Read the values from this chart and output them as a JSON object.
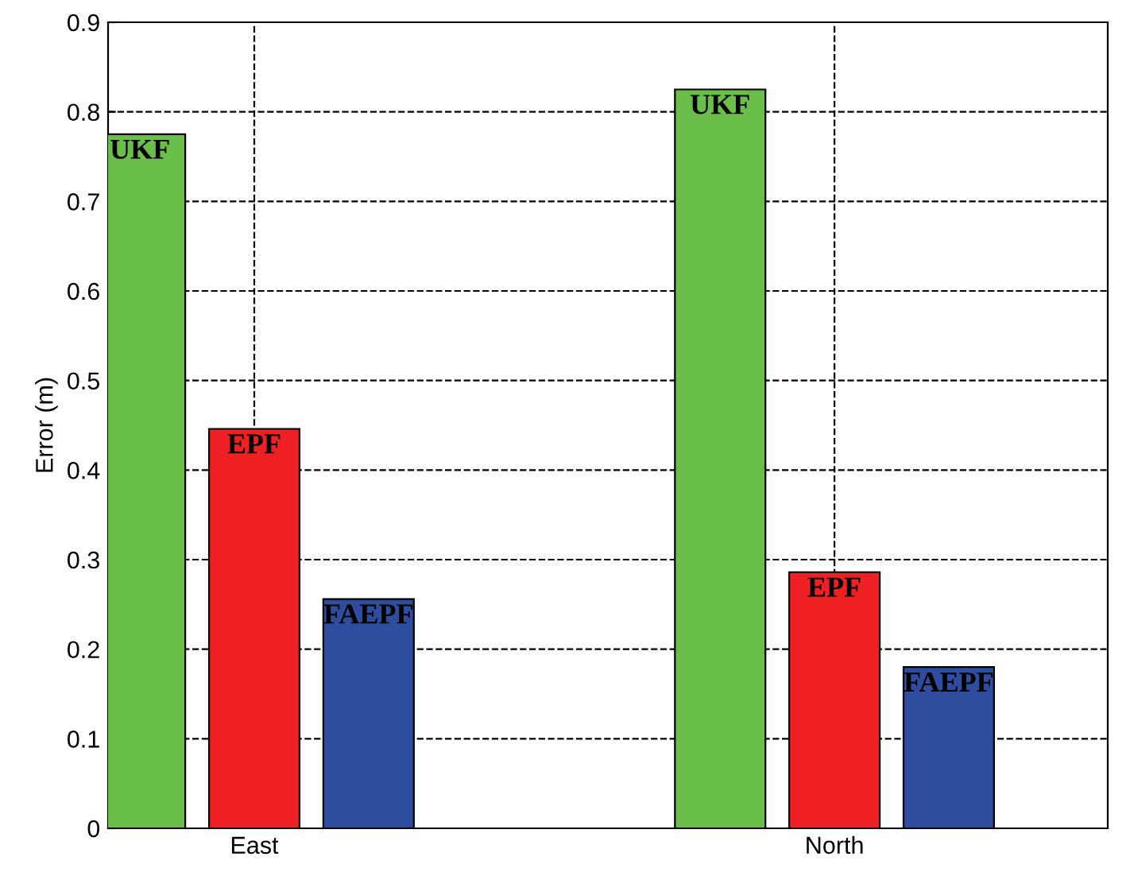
{
  "chart_data": {
    "type": "bar",
    "ylabel": "Error (m)",
    "categories": [
      "East",
      "North"
    ],
    "series": [
      {
        "name": "UKF",
        "color": "#6abf4b",
        "values": [
          0.775,
          0.825
        ]
      },
      {
        "name": "EPF",
        "color": "#ee2024",
        "values": [
          0.446,
          0.286
        ]
      },
      {
        "name": "FAEPF",
        "color": "#2e4d9f",
        "values": [
          0.256,
          0.18
        ]
      }
    ],
    "ylim": [
      0,
      0.9
    ],
    "yticks": [
      0,
      0.1,
      0.2,
      0.3,
      0.4,
      0.5,
      0.6,
      0.7,
      0.8,
      0.9
    ],
    "grid": true,
    "legend": false
  }
}
